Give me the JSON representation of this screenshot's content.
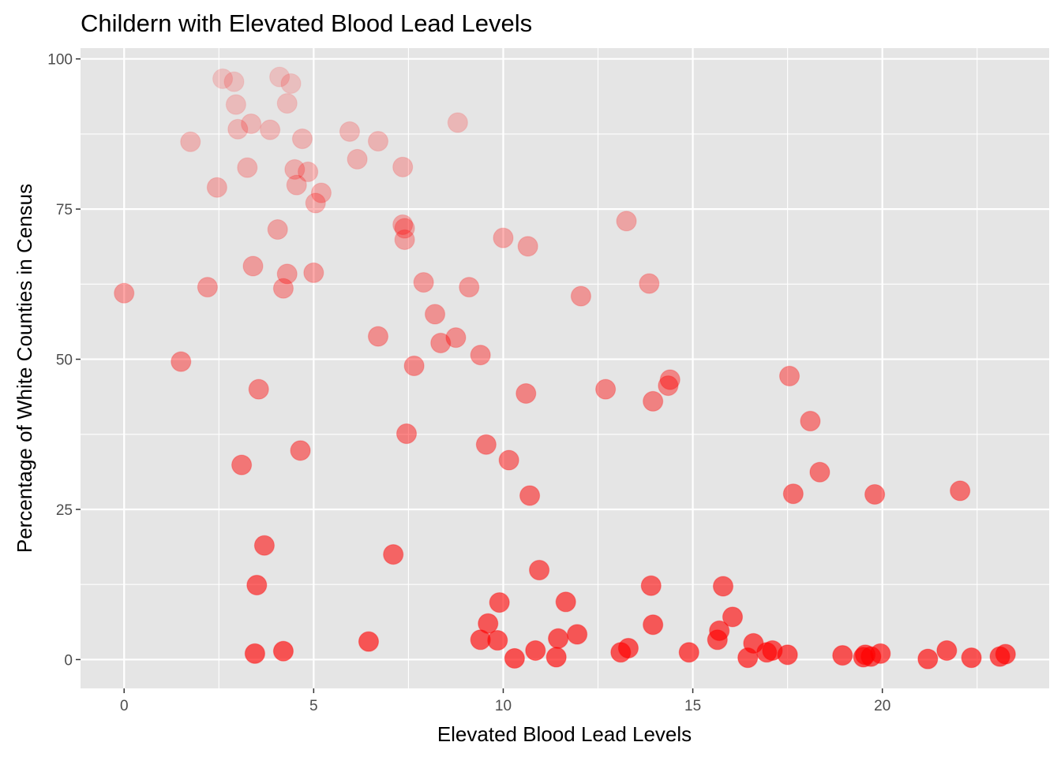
{
  "chart_data": {
    "type": "scatter",
    "title": "Childern with Elevated Blood Lead Levels",
    "xlabel": "Elevated Blood Lead Levels",
    "ylabel": "Percentage of White Counties in Census",
    "xlim": [
      -1.15,
      24.4
    ],
    "ylim": [
      -4.8,
      101.8
    ],
    "x_ticks": [
      0,
      5,
      10,
      15,
      20
    ],
    "y_ticks": [
      0,
      25,
      50,
      75,
      100
    ],
    "grid": true,
    "background_color": "#e5e5e5",
    "point_color": "#ff0000",
    "color_encoding": "opacity decreases as y increases (low y = solid red, high y = pale pink)",
    "points": [
      {
        "x": 0.0,
        "y": 61.0
      },
      {
        "x": 1.5,
        "y": 49.6
      },
      {
        "x": 1.75,
        "y": 86.2
      },
      {
        "x": 2.2,
        "y": 62.0
      },
      {
        "x": 2.45,
        "y": 78.6
      },
      {
        "x": 2.6,
        "y": 96.7
      },
      {
        "x": 2.9,
        "y": 96.2
      },
      {
        "x": 2.95,
        "y": 92.4
      },
      {
        "x": 3.0,
        "y": 88.3
      },
      {
        "x": 3.1,
        "y": 32.4
      },
      {
        "x": 3.25,
        "y": 81.9
      },
      {
        "x": 3.35,
        "y": 89.2
      },
      {
        "x": 3.4,
        "y": 65.5
      },
      {
        "x": 3.45,
        "y": 1.0
      },
      {
        "x": 3.5,
        "y": 12.4
      },
      {
        "x": 3.55,
        "y": 45.0
      },
      {
        "x": 3.7,
        "y": 19.0
      },
      {
        "x": 3.85,
        "y": 88.2
      },
      {
        "x": 4.05,
        "y": 71.6
      },
      {
        "x": 4.1,
        "y": 97.0
      },
      {
        "x": 4.2,
        "y": 61.8
      },
      {
        "x": 4.2,
        "y": 1.4
      },
      {
        "x": 4.3,
        "y": 64.2
      },
      {
        "x": 4.3,
        "y": 92.6
      },
      {
        "x": 4.4,
        "y": 95.9
      },
      {
        "x": 4.5,
        "y": 81.6
      },
      {
        "x": 4.55,
        "y": 79.0
      },
      {
        "x": 4.65,
        "y": 34.8
      },
      {
        "x": 4.7,
        "y": 86.7
      },
      {
        "x": 4.85,
        "y": 81.2
      },
      {
        "x": 5.0,
        "y": 64.4
      },
      {
        "x": 5.05,
        "y": 76.0
      },
      {
        "x": 5.2,
        "y": 77.7
      },
      {
        "x": 5.95,
        "y": 87.9
      },
      {
        "x": 6.15,
        "y": 83.3
      },
      {
        "x": 6.45,
        "y": 3.0
      },
      {
        "x": 6.7,
        "y": 53.8
      },
      {
        "x": 6.7,
        "y": 86.3
      },
      {
        "x": 7.1,
        "y": 17.5
      },
      {
        "x": 7.35,
        "y": 82.0
      },
      {
        "x": 7.35,
        "y": 72.4
      },
      {
        "x": 7.4,
        "y": 69.9
      },
      {
        "x": 7.4,
        "y": 71.8
      },
      {
        "x": 7.45,
        "y": 37.6
      },
      {
        "x": 7.65,
        "y": 48.9
      },
      {
        "x": 7.9,
        "y": 62.8
      },
      {
        "x": 8.2,
        "y": 57.5
      },
      {
        "x": 8.35,
        "y": 52.7
      },
      {
        "x": 8.75,
        "y": 53.6
      },
      {
        "x": 8.8,
        "y": 89.4
      },
      {
        "x": 9.1,
        "y": 62.0
      },
      {
        "x": 9.4,
        "y": 50.7
      },
      {
        "x": 9.4,
        "y": 3.3
      },
      {
        "x": 9.55,
        "y": 35.8
      },
      {
        "x": 9.6,
        "y": 6.0
      },
      {
        "x": 9.85,
        "y": 3.2
      },
      {
        "x": 9.9,
        "y": 9.5
      },
      {
        "x": 10.0,
        "y": 70.2
      },
      {
        "x": 10.15,
        "y": 33.2
      },
      {
        "x": 10.3,
        "y": 0.2
      },
      {
        "x": 10.6,
        "y": 44.3
      },
      {
        "x": 10.65,
        "y": 68.8
      },
      {
        "x": 10.7,
        "y": 27.3
      },
      {
        "x": 10.85,
        "y": 1.5
      },
      {
        "x": 10.95,
        "y": 14.9
      },
      {
        "x": 11.4,
        "y": 0.4
      },
      {
        "x": 11.45,
        "y": 3.5
      },
      {
        "x": 11.65,
        "y": 9.6
      },
      {
        "x": 11.95,
        "y": 4.2
      },
      {
        "x": 12.05,
        "y": 60.5
      },
      {
        "x": 12.7,
        "y": 45.0
      },
      {
        "x": 13.1,
        "y": 1.2
      },
      {
        "x": 13.25,
        "y": 73.0
      },
      {
        "x": 13.3,
        "y": 1.9
      },
      {
        "x": 13.85,
        "y": 62.6
      },
      {
        "x": 13.9,
        "y": 12.3
      },
      {
        "x": 13.95,
        "y": 5.8
      },
      {
        "x": 13.95,
        "y": 43.0
      },
      {
        "x": 14.35,
        "y": 45.6
      },
      {
        "x": 14.4,
        "y": 46.6
      },
      {
        "x": 14.9,
        "y": 1.2
      },
      {
        "x": 15.65,
        "y": 3.3
      },
      {
        "x": 15.7,
        "y": 4.8
      },
      {
        "x": 15.8,
        "y": 12.2
      },
      {
        "x": 16.05,
        "y": 7.1
      },
      {
        "x": 16.45,
        "y": 0.3
      },
      {
        "x": 16.6,
        "y": 2.7
      },
      {
        "x": 16.95,
        "y": 1.2
      },
      {
        "x": 17.1,
        "y": 1.5
      },
      {
        "x": 17.5,
        "y": 0.8
      },
      {
        "x": 17.55,
        "y": 47.2
      },
      {
        "x": 17.65,
        "y": 27.6
      },
      {
        "x": 18.1,
        "y": 39.7
      },
      {
        "x": 18.35,
        "y": 31.2
      },
      {
        "x": 18.95,
        "y": 0.7
      },
      {
        "x": 19.5,
        "y": 0.4
      },
      {
        "x": 19.55,
        "y": 0.8
      },
      {
        "x": 19.7,
        "y": 0.5
      },
      {
        "x": 19.8,
        "y": 27.5
      },
      {
        "x": 19.95,
        "y": 1.0
      },
      {
        "x": 21.2,
        "y": 0.1
      },
      {
        "x": 21.7,
        "y": 1.5
      },
      {
        "x": 22.05,
        "y": 28.1
      },
      {
        "x": 22.35,
        "y": 0.3
      },
      {
        "x": 23.1,
        "y": 0.5
      },
      {
        "x": 23.25,
        "y": 0.9
      }
    ]
  }
}
